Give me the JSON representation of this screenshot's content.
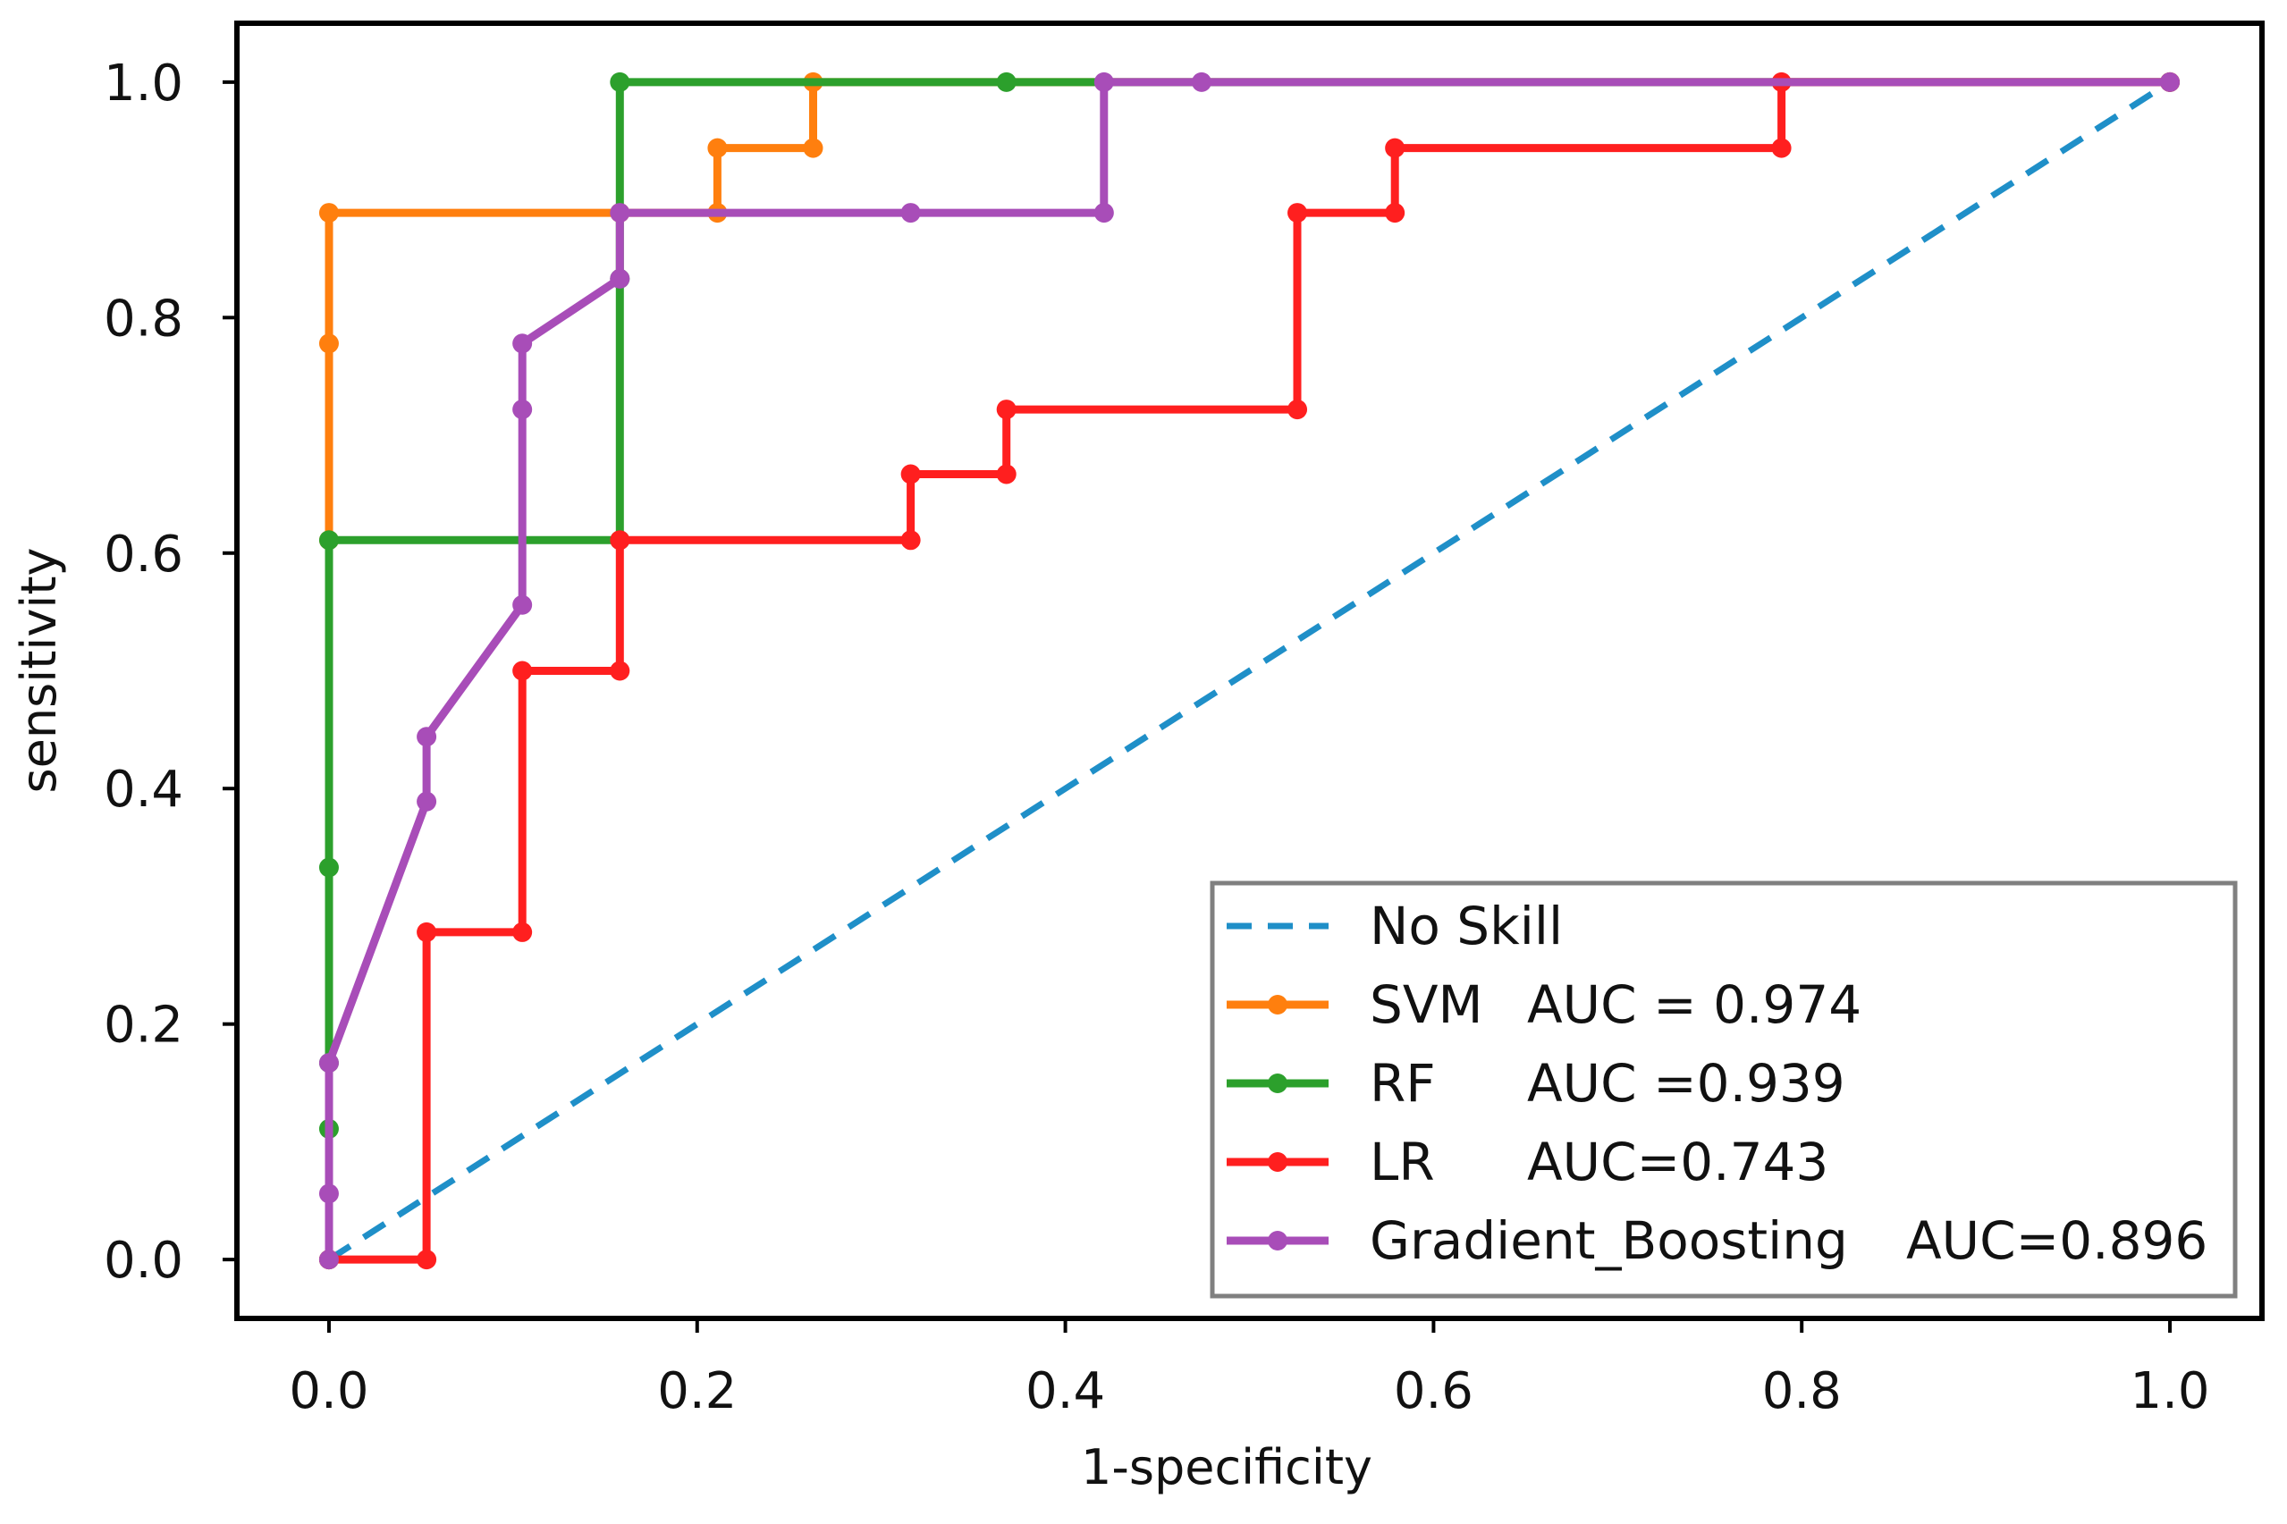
{
  "chart_data": {
    "type": "line",
    "title": "",
    "xlabel": "1-specificity",
    "ylabel": "sensitivity",
    "xlim": [
      -0.05,
      1.05
    ],
    "ylim": [
      -0.05,
      1.05
    ],
    "xticks": [
      0.0,
      0.2,
      0.4,
      0.6,
      0.8,
      1.0
    ],
    "yticks": [
      0.0,
      0.2,
      0.4,
      0.6,
      0.8,
      1.0
    ],
    "xtick_labels": [
      "0.0",
      "0.2",
      "0.4",
      "0.6",
      "0.8",
      "1.0"
    ],
    "ytick_labels": [
      "0.0",
      "0.2",
      "0.4",
      "0.6",
      "0.8",
      "1.0"
    ],
    "grid": false,
    "legend_position": "bottom-right",
    "series": [
      {
        "key": "no-skill",
        "name": "No Skill",
        "auc_label": "",
        "color": "#1f8fc8",
        "style": "dashed",
        "markers": false,
        "x": [
          0.0,
          1.0
        ],
        "y": [
          0.0,
          1.0
        ]
      },
      {
        "key": "svm",
        "name": "SVM",
        "auc_label": "AUC = 0.974",
        "color": "#ff7f0e",
        "style": "solid",
        "markers": true,
        "x": [
          0.0,
          0.0,
          0.0,
          0.0,
          0.158,
          0.211,
          0.211,
          0.263,
          0.263,
          1.0
        ],
        "y": [
          0.0,
          0.611,
          0.778,
          0.889,
          0.889,
          0.889,
          0.944,
          0.944,
          1.0,
          1.0
        ]
      },
      {
        "key": "rf",
        "name": "RF",
        "auc_label": "AUC =0.939",
        "color": "#2ca02c",
        "style": "solid",
        "markers": true,
        "x": [
          0.0,
          0.0,
          0.0,
          0.0,
          0.0,
          0.158,
          0.158,
          0.158,
          0.368,
          1.0
        ],
        "y": [
          0.0,
          0.111,
          0.167,
          0.333,
          0.611,
          0.611,
          0.833,
          1.0,
          1.0,
          1.0
        ]
      },
      {
        "key": "lr",
        "name": "LR",
        "auc_label": "AUC=0.743",
        "color": "#ff1f1f",
        "style": "solid",
        "markers": true,
        "x": [
          0.0,
          0.053,
          0.053,
          0.105,
          0.105,
          0.158,
          0.158,
          0.316,
          0.316,
          0.368,
          0.368,
          0.526,
          0.526,
          0.579,
          0.579,
          0.789,
          0.789,
          1.0
        ],
        "y": [
          0.0,
          0.0,
          0.278,
          0.278,
          0.5,
          0.5,
          0.611,
          0.611,
          0.667,
          0.667,
          0.722,
          0.722,
          0.889,
          0.889,
          0.944,
          0.944,
          1.0,
          1.0
        ]
      },
      {
        "key": "gradient-boosting",
        "name": "Gradient_Boosting",
        "auc_label": "AUC=0.896",
        "color": "#a84db8",
        "style": "solid",
        "markers": true,
        "x": [
          0.0,
          0.0,
          0.0,
          0.053,
          0.053,
          0.105,
          0.105,
          0.105,
          0.158,
          0.158,
          0.316,
          0.421,
          0.421,
          0.474,
          1.0
        ],
        "y": [
          0.0,
          0.056,
          0.167,
          0.389,
          0.444,
          0.556,
          0.722,
          0.778,
          0.833,
          0.889,
          0.889,
          0.889,
          1.0,
          1.0,
          1.0
        ]
      }
    ]
  }
}
